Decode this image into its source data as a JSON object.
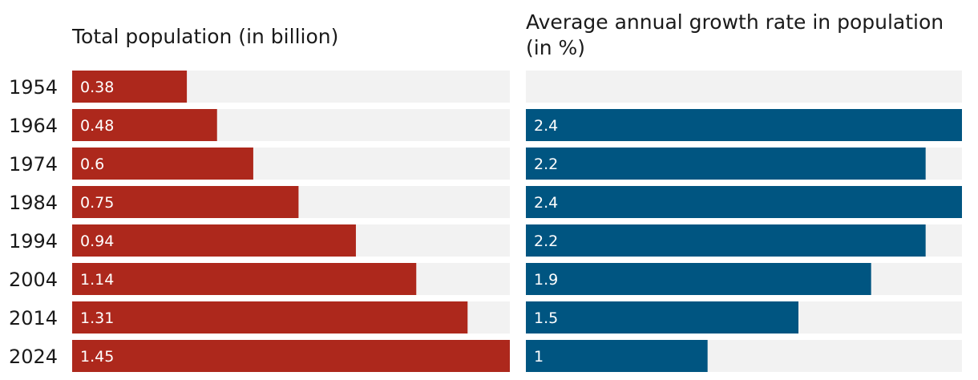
{
  "chart_data": [
    {
      "type": "bar",
      "orientation": "horizontal",
      "title": "Total population (in billion)",
      "categories": [
        "1954",
        "1964",
        "1974",
        "1984",
        "1994",
        "2004",
        "2014",
        "2024"
      ],
      "values": [
        0.38,
        0.48,
        0.6,
        0.75,
        0.94,
        1.14,
        1.31,
        1.45
      ],
      "labels": [
        "0.38",
        "0.48",
        "0.6",
        "0.75",
        "0.94",
        "1.14",
        "1.31",
        "1.45"
      ],
      "xlim": [
        0,
        1.45
      ],
      "color": "#ad281c",
      "track_color": "#f2f2f2"
    },
    {
      "type": "bar",
      "orientation": "horizontal",
      "title_lines": [
        "Average annual growth rate in population",
        "(in %)"
      ],
      "categories": [
        "1954",
        "1964",
        "1974",
        "1984",
        "1994",
        "2004",
        "2014",
        "2024"
      ],
      "values": [
        null,
        2.4,
        2.2,
        2.4,
        2.2,
        1.9,
        1.5,
        1
      ],
      "labels": [
        null,
        "2.4",
        "2.2",
        "2.4",
        "2.2",
        "1.9",
        "1.5",
        "1"
      ],
      "xlim": [
        0,
        2.4
      ],
      "color": "#005581",
      "track_color": "#f2f2f2"
    }
  ]
}
